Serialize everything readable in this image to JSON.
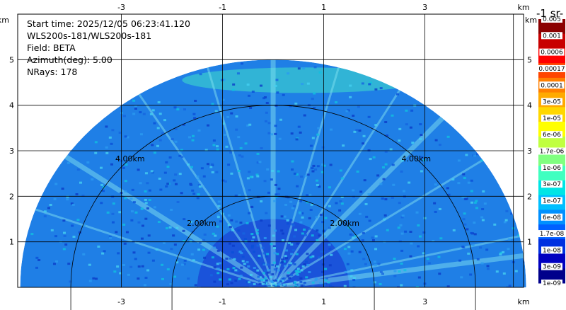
{
  "info": {
    "start_time": "Start time: 2025/12/05 06:23:41.120",
    "instrument": "WLS200s-181/WLS200s-181",
    "field": "Field: BETA",
    "azimuth": "Azimuth(deg): 5.00",
    "nrays": "NRays: 178"
  },
  "colorbar": {
    "title": "-1 sr-",
    "top_label": "0.005",
    "labels": [
      "0.001",
      "0.0006",
      "0.00017",
      "0.0001",
      "3e-05",
      "1e-05",
      "6e-06",
      "1.7e-06",
      "1e-06",
      "3e-07",
      "1e-07",
      "6e-08",
      "1.7e-08",
      "1e-08",
      "3e-09",
      "1e-09"
    ],
    "colors": [
      "#8b0000",
      "#c80000",
      "#ff0000",
      "#ff4500",
      "#ff7f00",
      "#ffaa00",
      "#ffd700",
      "#ffff00",
      "#c0ff40",
      "#80ff80",
      "#40ffc0",
      "#00e5e5",
      "#00bfff",
      "#0090ff",
      "#0060ff",
      "#0030e0",
      "#0000c0",
      "#00008b"
    ]
  },
  "chart_data": {
    "type": "heatmap",
    "title": "",
    "xlabel": "km",
    "ylabel": "km",
    "x_unit": "km",
    "y_unit": "km",
    "xlim": [
      -5.05,
      4.95
    ],
    "ylim": [
      0,
      6
    ],
    "x_ticks": [
      -3,
      -1,
      1,
      3
    ],
    "y_ticks": [
      1,
      2,
      3,
      4,
      5
    ],
    "range_rings_km": [
      2,
      4
    ],
    "range_ring_labels": [
      "2.00km",
      "4.00km"
    ],
    "max_range_km": 5.0,
    "grid": true,
    "sweep": "RHI",
    "field": "BETA",
    "colors": {
      "background_field": "#1f7fe6",
      "near_field": "#1530d0",
      "high_layer": "#40e0c8",
      "streak": "#7fe0f0"
    }
  }
}
